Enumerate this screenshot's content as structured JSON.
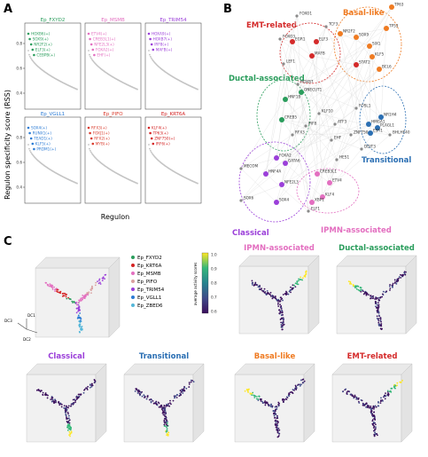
{
  "panel_a": {
    "letter": "A",
    "ylabel": "Regulon specificity score (RSS)",
    "xlabel": "Regulon",
    "yticks": [
      "0.4",
      "0.6",
      "0.8"
    ],
    "subplots": [
      {
        "title": "Ep_FXYD2",
        "color": "#2a9d5c",
        "labels": [
          "HOXB6(+)",
          "SOX9(+)",
          "NR2F2(+)",
          "ELF3(+)",
          "CEBPB(+)"
        ]
      },
      {
        "title": "Ep_MSMB",
        "color": "#e36fc0",
        "labels": [
          "ETV4(+)",
          "CREB3L1(+)",
          "NFE2L3(+)",
          "FOXA2(+)",
          "EHF(+)"
        ]
      },
      {
        "title": "Ep_TRIM54",
        "color": "#9b3fd9",
        "labels": [
          "HOXA9(+)",
          "HOXB7(+)",
          "IRF8(+)",
          "MAFB(+)"
        ]
      },
      {
        "title": "Ep_VGLL1",
        "color": "#2b7bd4",
        "labels": [
          "SOX4(+)",
          "RUNX1(+)",
          "TEAD1(+)",
          "KLF5(+)",
          "PRDM1(+)"
        ]
      },
      {
        "title": "Ep_PIFO",
        "color": "#d93a2b",
        "labels": [
          "RFX3(+)",
          "FOXJ1(+)",
          "RFX2(+)",
          "MYB(+)"
        ]
      },
      {
        "title": "Ep_KRT6A",
        "color": "#d42424",
        "labels": [
          "KLF4(+)",
          "TP63(+)",
          "ZNF750(+)",
          "IRF6(+)"
        ]
      }
    ]
  },
  "panel_b": {
    "letter": "B",
    "groups": [
      {
        "name": "EMT-related",
        "color": "#d42a2a"
      },
      {
        "name": "Basal-like",
        "color": "#ef7b22"
      },
      {
        "name": "Ductal-associated",
        "color": "#2a9d5c"
      },
      {
        "name": "Transitional",
        "color": "#2b6fb3"
      },
      {
        "name": "Classical",
        "color": "#9b3fd9"
      },
      {
        "name": "IPMN-associated",
        "color": "#e36fc0"
      }
    ],
    "nodes": [
      {
        "label": "FOXO1",
        "g": "grey"
      },
      {
        "label": "TCF3",
        "g": "grey"
      },
      {
        "label": "TP63",
        "g": "basal"
      },
      {
        "label": "FOXO3",
        "g": "grey"
      },
      {
        "label": "EGR1",
        "g": "emt"
      },
      {
        "label": "ELF3",
        "g": "emt"
      },
      {
        "label": "NR2F2",
        "g": "basal"
      },
      {
        "label": "SOX9",
        "g": "basal"
      },
      {
        "label": "SIX1",
        "g": "basal"
      },
      {
        "label": "MAFB",
        "g": "emt"
      },
      {
        "label": "KLF5",
        "g": "basal"
      },
      {
        "label": "LEF1",
        "g": "grey"
      },
      {
        "label": "STAT2",
        "g": "emt"
      },
      {
        "label": "BCL6",
        "g": "basal"
      },
      {
        "label": "TP53",
        "g": "basal"
      },
      {
        "label": "HNF1B",
        "g": "ductal"
      },
      {
        "label": "ONECUT1",
        "g": "ductal"
      },
      {
        "label": "CREB5",
        "g": "ductal"
      },
      {
        "label": "HOXB7",
        "g": "grey"
      },
      {
        "label": "RFX3",
        "g": "grey"
      },
      {
        "label": "IRF8",
        "g": "grey"
      },
      {
        "label": "KLF10",
        "g": "grey"
      },
      {
        "label": "ATF3",
        "g": "grey"
      },
      {
        "label": "EHF",
        "g": "grey"
      },
      {
        "label": "FOSL1",
        "g": "grey"
      },
      {
        "label": "ZNF750",
        "g": "grey"
      },
      {
        "label": "NR1H4",
        "g": "trans"
      },
      {
        "label": "HMGA1",
        "g": "trans"
      },
      {
        "label": "PLAGL1",
        "g": "trans"
      },
      {
        "label": "ESR1",
        "g": "trans"
      },
      {
        "label": "BHLHE40",
        "g": "grey"
      },
      {
        "label": "FOXA2",
        "g": "classical"
      },
      {
        "label": "GATA6",
        "g": "classical"
      },
      {
        "label": "HNF4A",
        "g": "classical"
      },
      {
        "label": "MECOM",
        "g": "grey"
      },
      {
        "label": "NFE2L3",
        "g": "classical"
      },
      {
        "label": "CREB3L1",
        "g": "ipmn"
      },
      {
        "label": "ETV4",
        "g": "ipmn"
      },
      {
        "label": "SOX4",
        "g": "classical"
      },
      {
        "label": "KLF4",
        "g": "ipmn"
      },
      {
        "label": "XBP1",
        "g": "ipmn"
      },
      {
        "label": "DDIT3",
        "g": "grey"
      },
      {
        "label": "HES1",
        "g": "grey"
      },
      {
        "label": "SOX6",
        "g": "grey"
      },
      {
        "label": "ELF1",
        "g": "grey"
      }
    ]
  },
  "panel_c": {
    "letter": "C",
    "legend": [
      {
        "name": "Ep_FXYD2",
        "color": "#2a9d5c"
      },
      {
        "name": "Ep_KRT6A",
        "color": "#d42424"
      },
      {
        "name": "Ep_MSMB",
        "color": "#e36fc0"
      },
      {
        "name": "Ep_PIFO",
        "color": "#d9a0a0"
      },
      {
        "name": "Ep_TRIM54",
        "color": "#9b3fd9"
      },
      {
        "name": "Ep_VGLL1",
        "color": "#2b7bd4"
      },
      {
        "name": "Ep_ZBED6",
        "color": "#55b7d9"
      }
    ],
    "axes": [
      "DC1",
      "DC2",
      "DC3"
    ],
    "colorbar": {
      "label": "average activity scores",
      "ticks": [
        "1.0",
        "0.9",
        "0.8",
        "0.7",
        "0.6"
      ]
    },
    "plots": [
      {
        "title": "IPMN-associated",
        "color": "#e36fc0"
      },
      {
        "title": "Ductal-associated",
        "color": "#2a9d5c"
      },
      {
        "title": "Classical",
        "color": "#9b3fd9"
      },
      {
        "title": "Transitional",
        "color": "#2b6fb3"
      },
      {
        "title": "Basal-like",
        "color": "#ef7b22"
      },
      {
        "title": "EMT-related",
        "color": "#d42a2a"
      }
    ]
  }
}
